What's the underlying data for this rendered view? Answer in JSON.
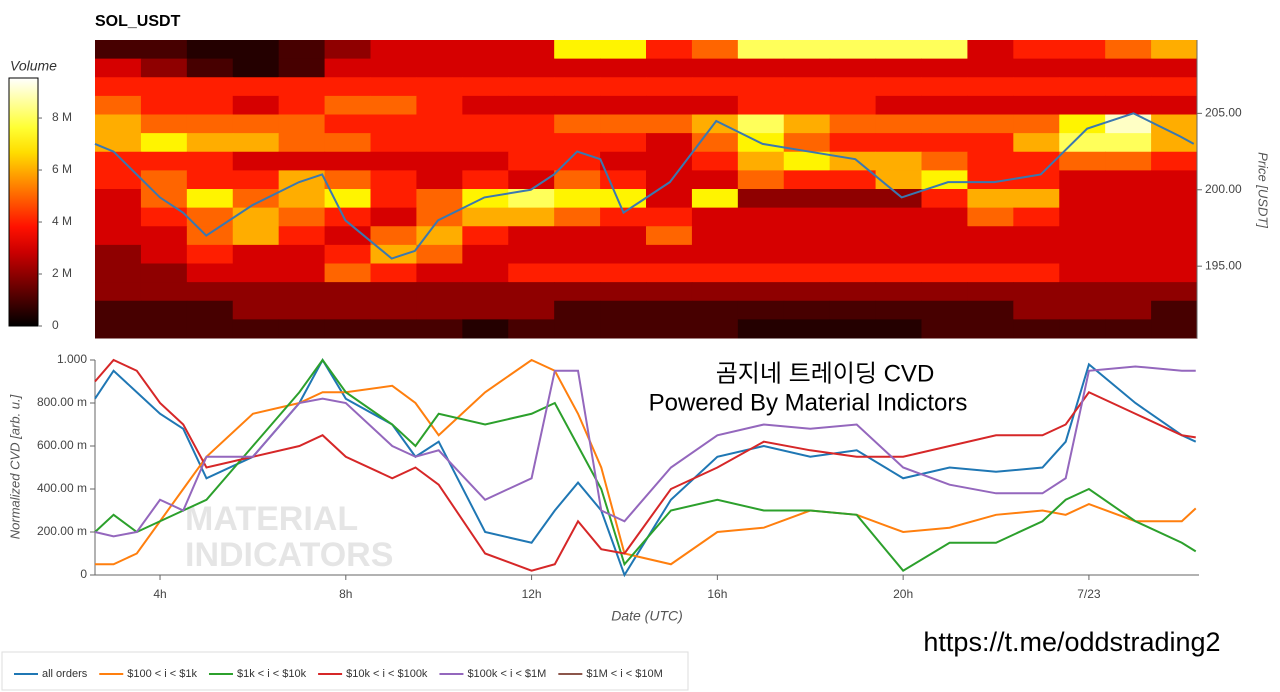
{
  "chart_data": [
    {
      "type": "heatmap",
      "title": "SOL_USDT",
      "colorbar_label": "Volume",
      "colormap": "hot",
      "y_label": "Price [USDT]",
      "zlim": [
        0,
        9.54
      ],
      "zticks": [
        0,
        {
          "value": 2,
          "label": "2 M"
        },
        {
          "value": 4,
          "label": "4 M"
        },
        {
          "value": 6,
          "label": "6 M"
        },
        {
          "value": 8,
          "label": "8 M"
        }
      ],
      "xlim": [
        2.6,
        26.37
      ],
      "ylim": [
        190.3,
        209.8
      ],
      "yticks": [
        {
          "value": 195,
          "label": "195.00"
        },
        {
          "value": 200,
          "label": "200.00"
        },
        {
          "value": 205,
          "label": "205.00"
        }
      ],
      "z": [
        [
          1,
          1,
          0.5,
          0.5,
          1,
          2,
          3,
          3,
          3,
          3,
          7,
          7,
          4,
          5,
          8,
          8,
          8,
          8,
          8,
          3,
          4,
          4,
          5,
          6
        ],
        [
          3,
          2,
          1,
          0.5,
          1,
          3,
          3,
          3,
          3,
          3,
          3,
          3,
          3,
          3,
          3,
          3,
          3,
          3,
          3,
          3,
          3,
          3,
          3,
          3
        ],
        [
          4,
          4,
          4,
          4,
          4,
          4,
          4,
          4,
          4,
          4,
          4,
          4,
          4,
          4,
          4,
          4,
          4,
          4,
          4,
          4,
          4,
          4,
          4,
          4
        ],
        [
          5,
          4,
          4,
          3,
          4,
          5,
          5,
          4,
          3,
          3,
          3,
          3,
          3,
          3,
          4,
          4,
          4,
          3,
          3,
          3,
          3,
          3,
          3,
          3
        ],
        [
          6,
          5,
          5,
          5,
          5,
          4,
          4,
          4,
          4,
          4,
          5,
          5,
          5,
          6,
          8,
          6,
          5,
          5,
          5,
          5,
          5,
          7,
          9,
          6
        ],
        [
          6,
          7,
          6,
          6,
          5,
          5,
          4,
          4,
          4,
          4,
          4,
          4,
          3,
          5,
          7,
          5,
          4,
          4,
          4,
          4,
          6,
          8,
          8,
          6
        ],
        [
          4,
          4,
          4,
          3,
          3,
          3,
          3,
          3,
          3,
          4,
          4,
          3,
          3,
          4,
          6,
          7,
          6,
          6,
          5,
          4,
          4,
          5,
          5,
          4
        ],
        [
          4,
          5,
          4,
          4,
          6,
          5,
          4,
          3,
          4,
          3,
          5,
          4,
          3,
          3,
          5,
          4,
          4,
          6,
          7,
          4,
          4,
          3,
          3,
          3
        ],
        [
          3,
          5,
          7,
          5,
          6,
          7,
          4,
          5,
          7,
          8,
          7,
          7,
          3,
          7,
          2,
          2,
          2,
          2,
          4,
          6,
          6,
          3,
          3,
          3
        ],
        [
          3,
          4,
          5,
          6,
          5,
          4,
          3,
          5,
          6,
          6,
          5,
          4,
          4,
          3,
          3,
          3,
          3,
          3,
          3,
          5,
          4,
          3,
          3,
          3
        ],
        [
          3,
          3,
          5,
          6,
          4,
          3,
          5,
          6,
          4,
          3,
          3,
          3,
          5,
          3,
          3,
          3,
          3,
          3,
          3,
          3,
          3,
          3,
          3,
          3
        ],
        [
          2,
          3,
          4,
          3,
          3,
          4,
          6,
          5,
          3,
          3,
          3,
          3,
          3,
          3,
          3,
          3,
          3,
          3,
          3,
          3,
          3,
          3,
          3,
          3
        ],
        [
          2,
          2,
          3,
          3,
          3,
          5,
          4,
          3,
          3,
          4,
          4,
          4,
          4,
          4,
          4,
          4,
          4,
          4,
          4,
          4,
          4,
          3,
          3,
          3
        ],
        [
          2,
          2,
          2,
          2,
          2,
          2,
          2,
          2,
          2,
          2,
          2,
          2,
          2,
          2,
          2,
          2,
          2,
          2,
          2,
          2,
          2,
          2,
          2,
          2
        ],
        [
          1,
          1,
          1,
          2,
          2,
          2,
          2,
          2,
          2,
          2,
          1,
          1,
          1,
          1,
          1,
          1,
          1,
          1,
          1,
          1,
          2,
          2,
          2,
          1
        ],
        [
          1,
          1,
          1,
          1,
          1,
          1,
          1,
          1,
          0.5,
          1,
          1,
          1,
          1,
          1,
          0.5,
          0.5,
          0.5,
          0.5,
          1,
          1,
          1,
          1,
          1,
          1
        ]
      ],
      "x": [
        2.6,
        3,
        3.5,
        4,
        4.5,
        5,
        6,
        7,
        7.5,
        8,
        9,
        9.5,
        10,
        11,
        12,
        12.5,
        13,
        13.5,
        14,
        15,
        16,
        17,
        18,
        19,
        20,
        21,
        22,
        23,
        23.5,
        24,
        25,
        26,
        26.3
      ],
      "price": {
        "color": "#3a78b0",
        "values": [
          203,
          202.5,
          201,
          199.5,
          198.5,
          197,
          199,
          200.5,
          201,
          198,
          195.5,
          196,
          198,
          199.5,
          200,
          201,
          202.5,
          202,
          198.5,
          200.5,
          204.5,
          203,
          202.5,
          202,
          199.5,
          200.5,
          200.5,
          201,
          202.5,
          204,
          205,
          203.5,
          203
        ]
      }
    },
    {
      "type": "line",
      "x_label": "Date (UTC)",
      "y_label": "Normalized CVD [arb. u.]",
      "annotations": [
        "곰지네 트레이딩 CVD",
        "Powered By Material Indictors"
      ],
      "watermark": [
        "MATERIAL",
        "INDICATORS"
      ],
      "legend": "bottom",
      "xlim": [
        2.6,
        26.37
      ],
      "xticks": [
        {
          "value": 4,
          "label": "4h"
        },
        {
          "value": 8,
          "label": "8h"
        },
        {
          "value": 12,
          "label": "12h"
        },
        {
          "value": 16,
          "label": "16h"
        },
        {
          "value": 20,
          "label": "20h"
        },
        {
          "value": 24,
          "label": "7/23"
        }
      ],
      "ylim": [
        0,
        1
      ],
      "yticks": [
        0,
        {
          "value": 0.2,
          "label": "200.00 m"
        },
        {
          "value": 0.4,
          "label": "400.00 m"
        },
        {
          "value": 0.6,
          "label": "600.00 m"
        },
        {
          "value": 0.8,
          "label": "800.00 m"
        },
        {
          "value": 1,
          "label": "1.000"
        }
      ],
      "x": [
        2.6,
        3,
        3.5,
        4,
        4.5,
        5,
        6,
        7,
        7.5,
        8,
        9,
        9.5,
        10,
        11,
        12,
        12.5,
        13,
        13.5,
        14,
        15,
        16,
        17,
        18,
        19,
        20,
        21,
        22,
        23,
        23.5,
        24,
        25,
        26,
        26.3
      ],
      "series": [
        {
          "name": "all orders",
          "color": "#1f77b4",
          "values": [
            0.82,
            0.95,
            0.85,
            0.75,
            0.68,
            0.45,
            0.55,
            0.8,
            1.0,
            0.82,
            0.7,
            0.55,
            0.62,
            0.2,
            0.15,
            0.3,
            0.43,
            0.3,
            0.0,
            0.35,
            0.55,
            0.6,
            0.55,
            0.58,
            0.45,
            0.5,
            0.48,
            0.5,
            0.62,
            0.98,
            0.8,
            0.65,
            0.62
          ]
        },
        {
          "name": "$100 < i < $1k",
          "color": "#ff7f0e",
          "values": [
            0.05,
            0.05,
            0.1,
            0.25,
            0.4,
            0.55,
            0.75,
            0.8,
            0.85,
            0.85,
            0.88,
            0.8,
            0.65,
            0.85,
            1.0,
            0.95,
            0.75,
            0.5,
            0.1,
            0.05,
            0.2,
            0.22,
            0.3,
            0.28,
            0.2,
            0.22,
            0.28,
            0.3,
            0.28,
            0.33,
            0.25,
            0.25,
            0.31
          ]
        },
        {
          "name": "$1k < i < $10k",
          "color": "#2ca02c",
          "values": [
            0.2,
            0.28,
            0.2,
            0.25,
            0.3,
            0.35,
            0.6,
            0.85,
            1.0,
            0.85,
            0.7,
            0.6,
            0.75,
            0.7,
            0.75,
            0.8,
            0.6,
            0.4,
            0.05,
            0.3,
            0.35,
            0.3,
            0.3,
            0.28,
            0.02,
            0.15,
            0.15,
            0.25,
            0.35,
            0.4,
            0.25,
            0.15,
            0.11
          ]
        },
        {
          "name": "$10k < i < $100k",
          "color": "#d62728",
          "values": [
            0.9,
            1.0,
            0.95,
            0.8,
            0.7,
            0.5,
            0.55,
            0.6,
            0.65,
            0.55,
            0.45,
            0.5,
            0.42,
            0.1,
            0.02,
            0.05,
            0.25,
            0.12,
            0.1,
            0.4,
            0.5,
            0.62,
            0.58,
            0.55,
            0.55,
            0.6,
            0.65,
            0.65,
            0.7,
            0.85,
            0.75,
            0.65,
            0.64
          ]
        },
        {
          "name": "$100k < i < $1M",
          "color": "#9467bd",
          "values": [
            0.2,
            0.18,
            0.2,
            0.35,
            0.3,
            0.55,
            0.55,
            0.8,
            0.82,
            0.8,
            0.6,
            0.55,
            0.58,
            0.35,
            0.45,
            0.95,
            0.95,
            0.3,
            0.25,
            0.5,
            0.65,
            0.7,
            0.68,
            0.7,
            0.5,
            0.42,
            0.38,
            0.38,
            0.45,
            0.95,
            0.97,
            0.95,
            0.95
          ]
        },
        {
          "name": "$1M < i < $10M",
          "color": "#8c564b",
          "values": [
            null,
            null,
            null,
            null,
            null,
            null,
            null,
            null,
            null,
            null,
            null,
            null,
            null,
            null,
            null,
            null,
            null,
            null,
            null,
            null,
            null,
            null,
            null,
            null,
            null,
            null,
            null,
            null,
            null,
            null,
            null,
            null,
            null
          ]
        }
      ]
    }
  ],
  "footer_text": "https://t.me/oddstrading2"
}
